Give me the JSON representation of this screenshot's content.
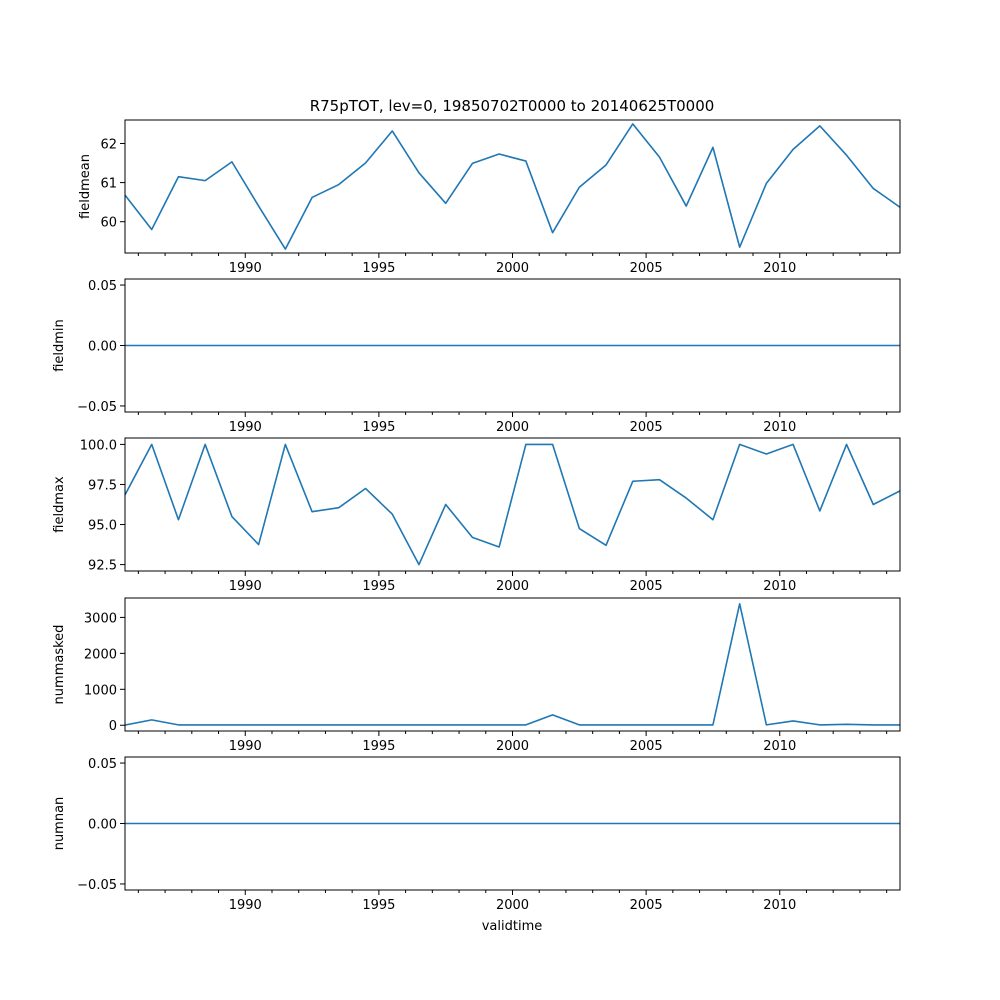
{
  "title": "R75pTOT, lev=0, 19850702T0000 to 20140625T0000",
  "xlabel": "validtime",
  "colors": {
    "line": "#1f77b4",
    "axes": "#000000",
    "background": "#ffffff"
  },
  "chart_data": {
    "type": "line",
    "title": "R75pTOT, lev=0, 19850702T0000 to 20140625T0000",
    "xlabel": "validtime",
    "x": [
      1985.5,
      1986.5,
      1987.5,
      1988.5,
      1989.5,
      1990.5,
      1991.5,
      1992.5,
      1993.5,
      1994.5,
      1995.5,
      1996.5,
      1997.5,
      1998.5,
      1999.5,
      2000.5,
      2001.5,
      2002.5,
      2003.5,
      2004.5,
      2005.5,
      2006.5,
      2007.5,
      2008.5,
      2009.5,
      2010.5,
      2011.5,
      2012.5,
      2013.5,
      2014.5
    ],
    "xlim": [
      1985.5,
      2014.5
    ],
    "xticks": [
      1990,
      1995,
      2000,
      2005,
      2010
    ],
    "panels": [
      {
        "ylabel": "fieldmean",
        "ylim": [
          59.2,
          62.6
        ],
        "yticks": [
          60,
          61,
          62
        ],
        "yticklabels": [
          "60",
          "61",
          "62"
        ],
        "values": [
          60.68,
          59.8,
          61.15,
          61.05,
          61.53,
          60.4,
          59.3,
          60.62,
          60.95,
          61.5,
          62.32,
          61.25,
          60.47,
          61.49,
          61.73,
          61.55,
          59.72,
          60.88,
          61.45,
          62.5,
          61.65,
          60.4,
          61.9,
          59.35,
          60.98,
          61.85,
          62.45,
          61.7,
          60.85,
          60.37
        ]
      },
      {
        "ylabel": "fieldmin",
        "ylim": [
          -0.055,
          0.055
        ],
        "yticks": [
          -0.05,
          0.0,
          0.05
        ],
        "yticklabels": [
          "−0.05",
          "0.00",
          "0.05"
        ],
        "values": [
          0,
          0,
          0,
          0,
          0,
          0,
          0,
          0,
          0,
          0,
          0,
          0,
          0,
          0,
          0,
          0,
          0,
          0,
          0,
          0,
          0,
          0,
          0,
          0,
          0,
          0,
          0,
          0,
          0,
          0
        ]
      },
      {
        "ylabel": "fieldmax",
        "ylim": [
          92.1,
          100.4
        ],
        "yticks": [
          92.5,
          95.0,
          97.5,
          100.0
        ],
        "yticklabels": [
          "92.5",
          "95.0",
          "97.5",
          "100.0"
        ],
        "values": [
          96.85,
          100.0,
          95.3,
          100.0,
          95.5,
          93.75,
          100.0,
          95.8,
          96.05,
          97.25,
          95.65,
          92.5,
          96.25,
          94.2,
          93.6,
          100.0,
          100.0,
          94.75,
          93.7,
          97.7,
          97.8,
          96.65,
          95.3,
          100.0,
          99.4,
          100.0,
          95.85,
          100.0,
          96.25,
          97.1
        ]
      },
      {
        "ylabel": "nummasked",
        "ylim": [
          -160,
          3540
        ],
        "yticks": [
          0,
          1000,
          2000,
          3000
        ],
        "yticklabels": [
          "0",
          "1000",
          "2000",
          "3000"
        ],
        "values": [
          5,
          150,
          10,
          10,
          10,
          10,
          10,
          10,
          10,
          10,
          10,
          10,
          10,
          10,
          10,
          10,
          290,
          10,
          10,
          10,
          10,
          10,
          10,
          3380,
          10,
          120,
          10,
          25,
          10,
          10
        ]
      },
      {
        "ylabel": "numnan",
        "ylim": [
          -0.055,
          0.055
        ],
        "yticks": [
          -0.05,
          0.0,
          0.05
        ],
        "yticklabels": [
          "−0.05",
          "0.00",
          "0.05"
        ],
        "values": [
          0,
          0,
          0,
          0,
          0,
          0,
          0,
          0,
          0,
          0,
          0,
          0,
          0,
          0,
          0,
          0,
          0,
          0,
          0,
          0,
          0,
          0,
          0,
          0,
          0,
          0,
          0,
          0,
          0,
          0
        ]
      }
    ]
  }
}
